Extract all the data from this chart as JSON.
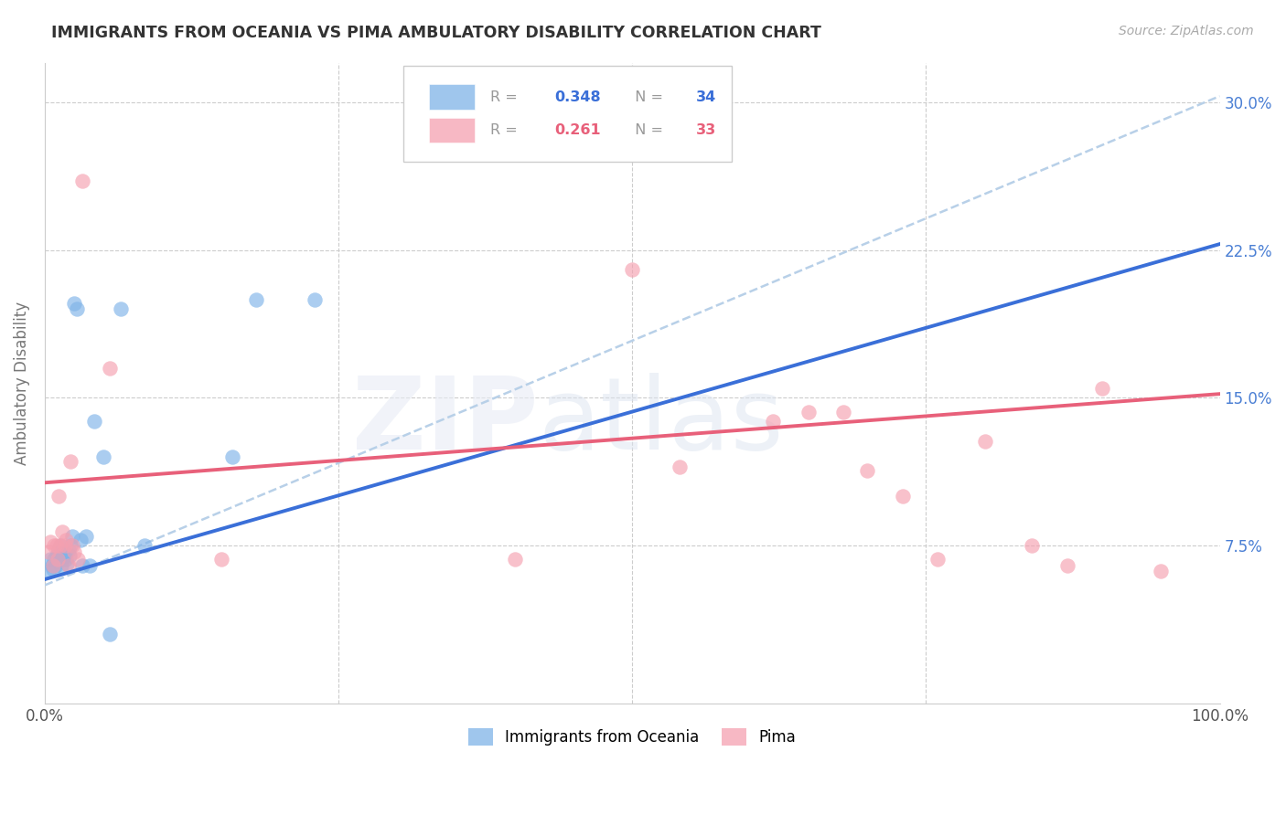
{
  "title": "IMMIGRANTS FROM OCEANIA VS PIMA AMBULATORY DISABILITY CORRELATION CHART",
  "source": "Source: ZipAtlas.com",
  "ylabel": "Ambulatory Disability",
  "xlim": [
    0.0,
    1.0
  ],
  "ylim": [
    -0.005,
    0.32
  ],
  "ytick_vals": [
    0.075,
    0.15,
    0.225,
    0.3
  ],
  "ytick_labels": [
    "7.5%",
    "15.0%",
    "22.5%",
    "30.0%"
  ],
  "grid_color": "#cccccc",
  "background_color": "#ffffff",
  "blue_color": "#7fb3e8",
  "pink_color": "#f5a0b0",
  "blue_line_color": "#3a6fd8",
  "pink_line_color": "#e8607a",
  "dashed_line_color": "#b8d0e8",
  "right_axis_color": "#4a7fd4",
  "scatter_blue_x": [
    0.003,
    0.005,
    0.006,
    0.007,
    0.008,
    0.009,
    0.01,
    0.011,
    0.012,
    0.013,
    0.014,
    0.015,
    0.016,
    0.017,
    0.018,
    0.019,
    0.02,
    0.021,
    0.022,
    0.023,
    0.025,
    0.027,
    0.03,
    0.032,
    0.035,
    0.038,
    0.042,
    0.05,
    0.055,
    0.065,
    0.085,
    0.16,
    0.18,
    0.23
  ],
  "scatter_blue_y": [
    0.062,
    0.068,
    0.065,
    0.063,
    0.068,
    0.065,
    0.07,
    0.068,
    0.073,
    0.075,
    0.065,
    0.068,
    0.072,
    0.07,
    0.068,
    0.066,
    0.073,
    0.07,
    0.075,
    0.08,
    0.198,
    0.195,
    0.078,
    0.065,
    0.08,
    0.065,
    0.138,
    0.12,
    0.03,
    0.195,
    0.075,
    0.12,
    0.2,
    0.2
  ],
  "scatter_pink_x": [
    0.003,
    0.005,
    0.007,
    0.008,
    0.01,
    0.011,
    0.012,
    0.013,
    0.015,
    0.017,
    0.018,
    0.02,
    0.022,
    0.023,
    0.025,
    0.028,
    0.032,
    0.055,
    0.15,
    0.4,
    0.5,
    0.54,
    0.62,
    0.65,
    0.68,
    0.7,
    0.73,
    0.76,
    0.8,
    0.84,
    0.87,
    0.9,
    0.95
  ],
  "scatter_pink_y": [
    0.072,
    0.077,
    0.065,
    0.075,
    0.075,
    0.068,
    0.1,
    0.075,
    0.082,
    0.075,
    0.078,
    0.065,
    0.118,
    0.075,
    0.072,
    0.068,
    0.26,
    0.165,
    0.068,
    0.068,
    0.215,
    0.115,
    0.138,
    0.143,
    0.143,
    0.113,
    0.1,
    0.068,
    0.128,
    0.075,
    0.065,
    0.155,
    0.062
  ],
  "blue_trend_x": [
    0.0,
    1.0
  ],
  "blue_trend_y": [
    0.058,
    0.228
  ],
  "pink_trend_x": [
    0.0,
    1.0
  ],
  "pink_trend_y": [
    0.107,
    0.152
  ],
  "dashed_trend_x": [
    0.0,
    1.0
  ],
  "dashed_trend_y": [
    0.055,
    0.303
  ]
}
